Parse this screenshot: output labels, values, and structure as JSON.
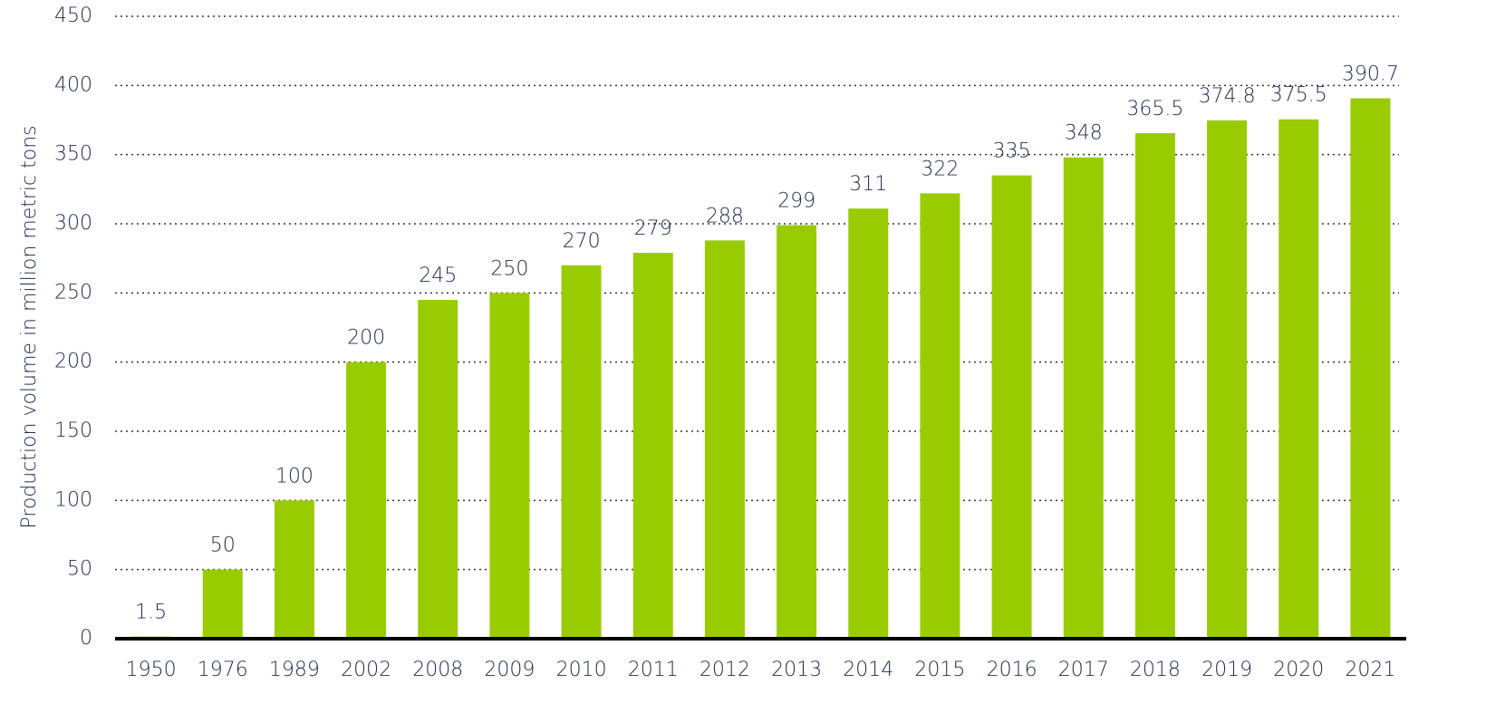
{
  "chart_data": {
    "type": "bar",
    "y_label": "Production volume in million metric tons",
    "categories": [
      "1950",
      "1976",
      "1989",
      "2002",
      "2008",
      "2009",
      "2010",
      "2011",
      "2012",
      "2013",
      "2014",
      "2015",
      "2016",
      "2017",
      "2018",
      "2019",
      "2020",
      "2021"
    ],
    "values": [
      1.5,
      50,
      100,
      200,
      245,
      250,
      270,
      279,
      288,
      299,
      311,
      322,
      335,
      348,
      365.5,
      374.8,
      375.5,
      390.7
    ],
    "color": "#99cc00",
    "ylim": [
      0,
      450
    ],
    "yticks": [
      0,
      50,
      100,
      150,
      200,
      250,
      300,
      350,
      400,
      450
    ],
    "grid": true
  }
}
